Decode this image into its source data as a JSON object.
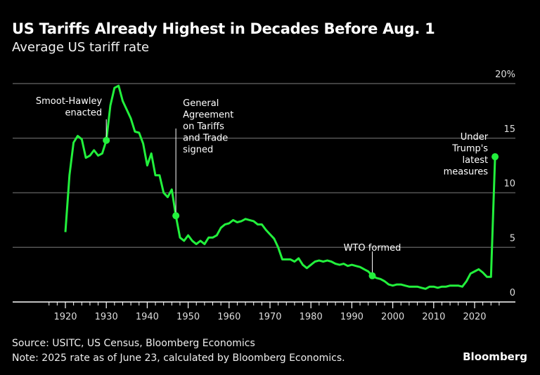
{
  "header": {
    "title": "US Tariffs Already Highest in Decades Before Aug. 1",
    "subtitle": "Average US tariff rate"
  },
  "footer": {
    "source": "Source: USITC, US Census, Bloomberg Economics",
    "note": "Note: 2025 rate as of June 23, calculated by Bloomberg Economics.",
    "brand": "Bloomberg"
  },
  "colors": {
    "line": "#22f03c",
    "grid": "#555555",
    "background": "#000000"
  },
  "chart_data": {
    "type": "line",
    "title": "US Tariffs Already Highest in Decades Before Aug. 1",
    "subtitle": "Average US tariff rate",
    "xlabel": "",
    "ylabel": "",
    "xlim": [
      1920,
      2025
    ],
    "ylim": [
      0,
      20
    ],
    "x_ticks": [
      1920,
      1930,
      1940,
      1950,
      1960,
      1970,
      1980,
      1990,
      2000,
      2010,
      2020
    ],
    "y_ticks": [
      0,
      5,
      10,
      15,
      20
    ],
    "y_tick_labels": [
      "0",
      "5",
      "10",
      "15",
      "20%"
    ],
    "grid": true,
    "y_axis_side": "right",
    "series": [
      {
        "name": "Average US tariff rate",
        "x": [
          1920,
          1921,
          1922,
          1923,
          1924,
          1925,
          1926,
          1927,
          1928,
          1929,
          1930,
          1931,
          1932,
          1933,
          1934,
          1935,
          1936,
          1937,
          1938,
          1939,
          1940,
          1941,
          1942,
          1943,
          1944,
          1945,
          1946,
          1947,
          1948,
          1949,
          1950,
          1951,
          1952,
          1953,
          1954,
          1955,
          1956,
          1957,
          1958,
          1959,
          1960,
          1961,
          1962,
          1963,
          1964,
          1965,
          1966,
          1967,
          1968,
          1969,
          1970,
          1971,
          1972,
          1973,
          1974,
          1975,
          1976,
          1977,
          1978,
          1979,
          1980,
          1981,
          1982,
          1983,
          1984,
          1985,
          1986,
          1987,
          1988,
          1989,
          1990,
          1991,
          1992,
          1993,
          1994,
          1995,
          1996,
          1997,
          1998,
          1999,
          2000,
          2001,
          2002,
          2003,
          2004,
          2005,
          2006,
          2007,
          2008,
          2009,
          2010,
          2011,
          2012,
          2013,
          2014,
          2015,
          2016,
          2017,
          2018,
          2019,
          2020,
          2021,
          2022,
          2023,
          2024,
          2025
        ],
        "values": [
          6.4,
          11.6,
          14.6,
          15.2,
          14.9,
          13.2,
          13.4,
          13.9,
          13.4,
          13.6,
          14.8,
          18.0,
          19.6,
          19.8,
          18.4,
          17.6,
          16.8,
          15.6,
          15.5,
          14.5,
          12.5,
          13.6,
          11.6,
          11.6,
          10.0,
          9.6,
          10.3,
          7.9,
          5.9,
          5.6,
          6.1,
          5.6,
          5.3,
          5.6,
          5.3,
          5.9,
          5.9,
          6.1,
          6.8,
          7.1,
          7.2,
          7.5,
          7.3,
          7.4,
          7.6,
          7.5,
          7.4,
          7.1,
          7.1,
          6.6,
          6.2,
          5.8,
          5.0,
          3.9,
          3.9,
          3.9,
          3.7,
          4.0,
          3.4,
          3.1,
          3.4,
          3.7,
          3.8,
          3.7,
          3.8,
          3.7,
          3.5,
          3.4,
          3.5,
          3.3,
          3.4,
          3.3,
          3.2,
          3.0,
          2.8,
          2.4,
          2.2,
          2.1,
          1.9,
          1.6,
          1.5,
          1.6,
          1.6,
          1.5,
          1.4,
          1.4,
          1.4,
          1.3,
          1.2,
          1.4,
          1.4,
          1.3,
          1.4,
          1.4,
          1.5,
          1.5,
          1.5,
          1.4,
          1.9,
          2.6,
          2.8,
          3.0,
          2.7,
          2.3,
          2.3,
          13.3
        ]
      }
    ],
    "annotations": [
      {
        "x": 1930,
        "y": 14.8,
        "lines": [
          "Smoot-Hawley",
          "enacted"
        ],
        "side": "left"
      },
      {
        "x": 1947,
        "y": 7.9,
        "lines": [
          "General",
          "Agreement",
          "on Tariffs",
          "and Trade",
          "signed"
        ],
        "side": "right"
      },
      {
        "x": 1995,
        "y": 2.4,
        "lines": [
          "WTO formed"
        ],
        "side": "above"
      },
      {
        "x": 2025,
        "y": 13.3,
        "lines": [
          "Under",
          "Trump's",
          "latest",
          "measures"
        ],
        "side": "left"
      }
    ]
  }
}
